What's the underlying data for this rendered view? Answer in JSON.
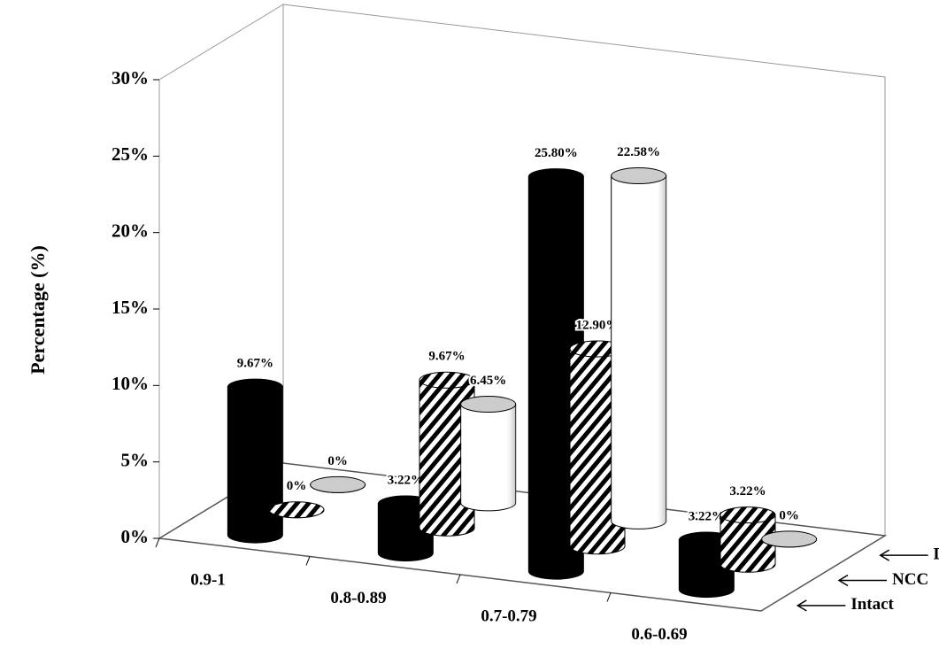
{
  "chart_data": {
    "type": "bar3d",
    "y_label": "Percentage (%)",
    "categories": [
      "0.9-1",
      "0.8-0.89",
      "0.7-0.79",
      "0.6-0.69"
    ],
    "series": [
      {
        "name": "Intact",
        "color": "#000000",
        "values": [
          9.67,
          3.22,
          25.8,
          3.22
        ],
        "value_labels": [
          "9.67%",
          "3.22%",
          "25.80%",
          "3.22%"
        ]
      },
      {
        "name": "NCC",
        "color": "#000000",
        "pattern": "diagonal-hatch",
        "values": [
          0,
          9.67,
          12.9,
          3.22
        ],
        "value_labels": [
          "0%",
          "9.67%",
          "12.90%",
          "3.22%"
        ]
      },
      {
        "name": "DHPC",
        "color": "#ffffff",
        "values": [
          0,
          6.45,
          22.58,
          0
        ],
        "value_labels": [
          "0%",
          "6.45%",
          "22.58%",
          "0%"
        ]
      }
    ],
    "ylim": [
      0,
      30
    ],
    "yticks": [
      {
        "value": 0,
        "label": "0%"
      },
      {
        "value": 5,
        "label": "5%"
      },
      {
        "value": 10,
        "label": "10%"
      },
      {
        "value": 15,
        "label": "15%"
      },
      {
        "value": 20,
        "label": "20%"
      },
      {
        "value": 25,
        "label": "25%"
      },
      {
        "value": 30,
        "label": "30%"
      }
    ]
  }
}
